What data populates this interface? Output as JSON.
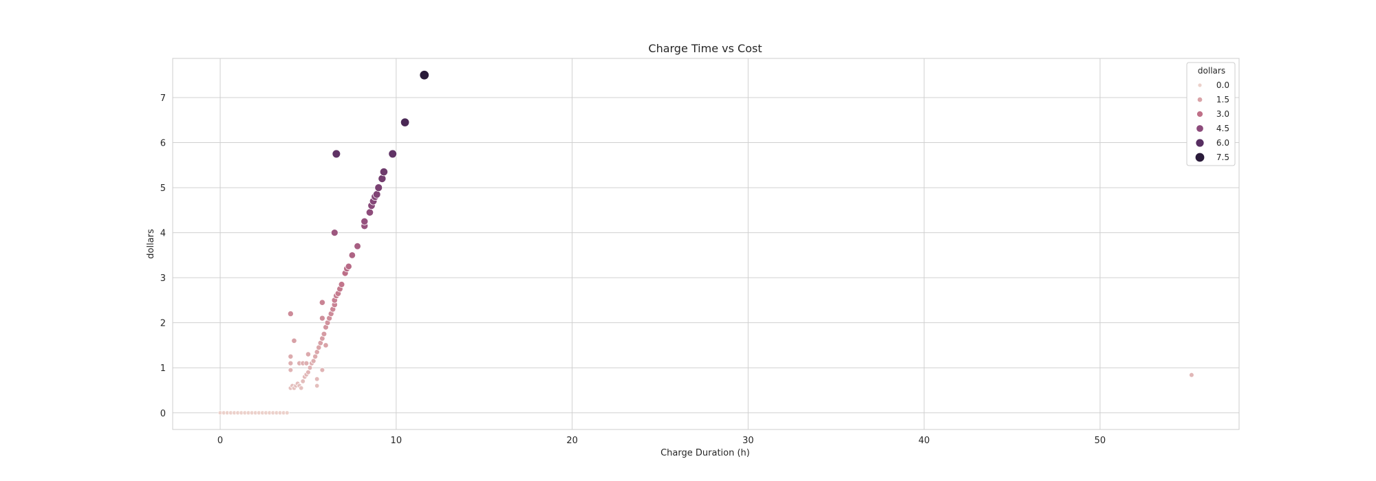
{
  "chart_data": {
    "type": "scatter",
    "title": "Charge Time vs Cost",
    "xlabel": "Charge Duration (h)",
    "ylabel": "dollars",
    "xlim": [
      -2.7,
      57.9
    ],
    "ylim": [
      -0.37,
      7.87
    ],
    "xticks": [
      0,
      10,
      20,
      30,
      40,
      50
    ],
    "yticks": [
      0,
      1,
      2,
      3,
      4,
      5,
      6,
      7
    ],
    "grid": true,
    "hue": "dollars",
    "legend": {
      "title": "dollars",
      "position": "top-right",
      "entries": [
        "0.0",
        "1.5",
        "3.0",
        "4.5",
        "6.0",
        "7.5"
      ],
      "values": [
        0.0,
        1.5,
        3.0,
        4.5,
        6.0,
        7.5
      ]
    },
    "palette": {
      "low": "#ecd1cb",
      "mid_low": "#d9a3a8",
      "mid": "#bf7088",
      "mid_high": "#8c4b7b",
      "high": "#572e61",
      "max": "#2a1b3a"
    },
    "background": "#ffffff",
    "grid_color": "#d0d0d0",
    "points": [
      [
        0.0,
        0.0
      ],
      [
        0.2,
        0.0
      ],
      [
        0.4,
        0.0
      ],
      [
        0.6,
        0.0
      ],
      [
        0.8,
        0.0
      ],
      [
        1.0,
        0.0
      ],
      [
        1.2,
        0.0
      ],
      [
        1.4,
        0.0
      ],
      [
        1.6,
        0.0
      ],
      [
        1.8,
        0.0
      ],
      [
        2.0,
        0.0
      ],
      [
        2.2,
        0.0
      ],
      [
        2.4,
        0.0
      ],
      [
        2.6,
        0.0
      ],
      [
        2.8,
        0.0
      ],
      [
        3.0,
        0.0
      ],
      [
        3.2,
        0.0
      ],
      [
        3.4,
        0.0
      ],
      [
        3.6,
        0.0
      ],
      [
        3.8,
        0.0
      ],
      [
        4.0,
        0.55
      ],
      [
        4.1,
        0.6
      ],
      [
        4.2,
        0.55
      ],
      [
        4.3,
        0.6
      ],
      [
        4.4,
        0.65
      ],
      [
        4.5,
        0.6
      ],
      [
        4.6,
        0.55
      ],
      [
        4.7,
        0.7
      ],
      [
        4.8,
        0.8
      ],
      [
        4.9,
        0.85
      ],
      [
        5.0,
        0.9
      ],
      [
        5.1,
        1.0
      ],
      [
        5.2,
        1.1
      ],
      [
        5.3,
        1.15
      ],
      [
        5.4,
        1.25
      ],
      [
        5.5,
        1.35
      ],
      [
        5.6,
        1.45
      ],
      [
        5.7,
        1.55
      ],
      [
        5.8,
        1.65
      ],
      [
        5.9,
        1.75
      ],
      [
        4.0,
        0.95
      ],
      [
        4.0,
        1.1
      ],
      [
        4.0,
        1.25
      ],
      [
        4.5,
        1.1
      ],
      [
        4.7,
        1.1
      ],
      [
        4.9,
        1.1
      ],
      [
        5.0,
        1.3
      ],
      [
        5.5,
        0.6
      ],
      [
        5.5,
        0.75
      ],
      [
        5.8,
        0.95
      ],
      [
        6.0,
        1.5
      ],
      [
        4.0,
        2.2
      ],
      [
        4.2,
        1.6
      ],
      [
        5.8,
        2.1
      ],
      [
        5.8,
        2.45
      ],
      [
        6.0,
        1.9
      ],
      [
        6.1,
        2.0
      ],
      [
        6.2,
        2.1
      ],
      [
        6.3,
        2.2
      ],
      [
        6.4,
        2.3
      ],
      [
        6.5,
        2.4
      ],
      [
        6.5,
        2.5
      ],
      [
        6.6,
        2.6
      ],
      [
        6.7,
        2.65
      ],
      [
        6.8,
        2.75
      ],
      [
        6.9,
        2.85
      ],
      [
        7.1,
        3.1
      ],
      [
        7.2,
        3.2
      ],
      [
        7.3,
        3.25
      ],
      [
        7.5,
        3.5
      ],
      [
        7.8,
        3.7
      ],
      [
        6.5,
        4.0
      ],
      [
        8.2,
        4.15
      ],
      [
        8.2,
        4.25
      ],
      [
        8.5,
        4.45
      ],
      [
        8.6,
        4.6
      ],
      [
        8.7,
        4.7
      ],
      [
        8.8,
        4.8
      ],
      [
        8.9,
        4.85
      ],
      [
        9.0,
        5.0
      ],
      [
        9.2,
        5.2
      ],
      [
        9.3,
        5.35
      ],
      [
        6.6,
        5.75
      ],
      [
        9.8,
        5.75
      ],
      [
        10.5,
        6.45
      ],
      [
        11.6,
        7.5
      ],
      [
        55.2,
        0.84
      ]
    ]
  }
}
